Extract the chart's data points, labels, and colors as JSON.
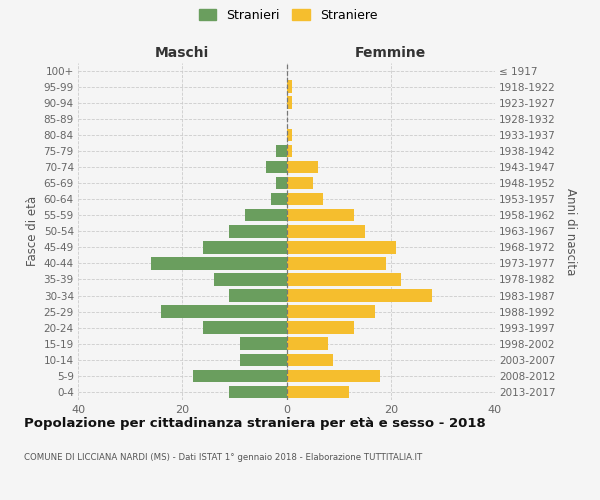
{
  "age_groups": [
    "0-4",
    "5-9",
    "10-14",
    "15-19",
    "20-24",
    "25-29",
    "30-34",
    "35-39",
    "40-44",
    "45-49",
    "50-54",
    "55-59",
    "60-64",
    "65-69",
    "70-74",
    "75-79",
    "80-84",
    "85-89",
    "90-94",
    "95-99",
    "100+"
  ],
  "birth_years": [
    "2013-2017",
    "2008-2012",
    "2003-2007",
    "1998-2002",
    "1993-1997",
    "1988-1992",
    "1983-1987",
    "1978-1982",
    "1973-1977",
    "1968-1972",
    "1963-1967",
    "1958-1962",
    "1953-1957",
    "1948-1952",
    "1943-1947",
    "1938-1942",
    "1933-1937",
    "1928-1932",
    "1923-1927",
    "1918-1922",
    "≤ 1917"
  ],
  "maschi": [
    11,
    18,
    9,
    9,
    16,
    24,
    11,
    14,
    26,
    16,
    11,
    8,
    3,
    2,
    4,
    2,
    0,
    0,
    0,
    0,
    0
  ],
  "femmine": [
    12,
    18,
    9,
    8,
    13,
    17,
    28,
    22,
    19,
    21,
    15,
    13,
    7,
    5,
    6,
    1,
    1,
    0,
    1,
    1,
    0
  ],
  "color_maschi": "#6a9e5e",
  "color_femmine": "#f5be2e",
  "title": "Popolazione per cittadinanza straniera per età e sesso - 2018",
  "subtitle": "COMUNE DI LICCIANA NARDI (MS) - Dati ISTAT 1° gennaio 2018 - Elaborazione TUTTITALIA.IT",
  "label_maschi": "Stranieri",
  "label_femmine": "Straniere",
  "header_left": "Maschi",
  "header_right": "Femmine",
  "ylabel_left": "Fasce di età",
  "ylabel_right": "Anni di nascita",
  "xlim": 40,
  "bg_color": "#f5f5f5",
  "grid_color": "#cccccc"
}
